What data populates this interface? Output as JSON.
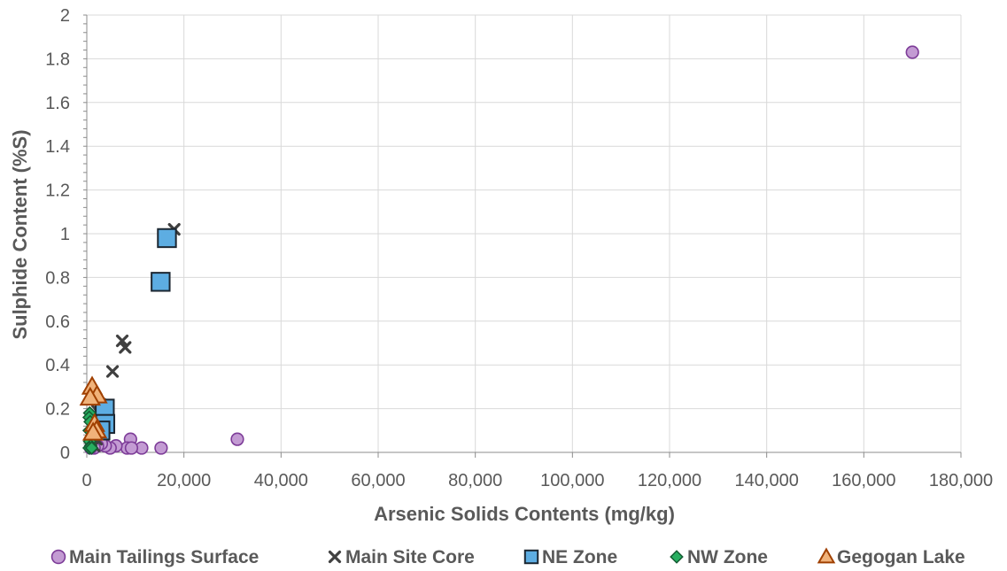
{
  "chart_data": {
    "type": "scatter",
    "title": "",
    "xlabel": "Arsenic Solids Contents (mg/kg)",
    "ylabel": "Sulphide Content (%S)",
    "xlim": [
      0,
      180000
    ],
    "ylim": [
      0,
      2
    ],
    "x_ticks": [
      0,
      20000,
      40000,
      60000,
      80000,
      100000,
      120000,
      140000,
      160000,
      180000
    ],
    "x_tick_labels": [
      "0",
      "20,000",
      "40,000",
      "60,000",
      "80,000",
      "100,000",
      "120,000",
      "140,000",
      "160,000",
      "180,000"
    ],
    "y_ticks": [
      0,
      0.2,
      0.4,
      0.6,
      0.8,
      1,
      1.2,
      1.4,
      1.6,
      1.8,
      2
    ],
    "y_tick_labels": [
      "0",
      "0.2",
      "0.4",
      "0.6",
      "0.8",
      "1",
      "1.2",
      "1.4",
      "1.6",
      "1.8",
      "2"
    ],
    "grid": true,
    "legend_position": "bottom",
    "series": [
      {
        "name": "Main Tailings Surface",
        "marker": "circle",
        "color": "#c39bd3",
        "edge": "#7d3c98",
        "points": [
          [
            170000,
            1.83
          ],
          [
            31000,
            0.06
          ],
          [
            9000,
            0.06
          ],
          [
            15300,
            0.02
          ],
          [
            11300,
            0.02
          ],
          [
            8300,
            0.02
          ],
          [
            9200,
            0.02
          ],
          [
            6000,
            0.03
          ],
          [
            4800,
            0.02
          ],
          [
            3800,
            0.03
          ],
          [
            3000,
            0.04
          ],
          [
            2200,
            0.03
          ],
          [
            1500,
            0.02
          ],
          [
            800,
            0.02
          ]
        ]
      },
      {
        "name": "Main Site Core",
        "marker": "x",
        "color": "#595959",
        "edge": "#404040",
        "points": [
          [
            18000,
            1.02
          ],
          [
            7300,
            0.51
          ],
          [
            7900,
            0.48
          ],
          [
            5300,
            0.37
          ],
          [
            2700,
            0.22
          ],
          [
            2200,
            0.19
          ],
          [
            2500,
            0.12
          ],
          [
            2000,
            0.06
          ],
          [
            1500,
            0.03
          ]
        ]
      },
      {
        "name": "NE Zone",
        "marker": "square",
        "color": "#5dade2",
        "edge": "#1b2631",
        "points": [
          [
            16500,
            0.98
          ],
          [
            15200,
            0.78
          ],
          [
            3700,
            0.2
          ],
          [
            3800,
            0.13
          ],
          [
            2800,
            0.1
          ]
        ]
      },
      {
        "name": "NW Zone",
        "marker": "diamond",
        "color": "#27ae60",
        "edge": "#145a32",
        "points": [
          [
            600,
            0.18
          ],
          [
            500,
            0.16
          ],
          [
            700,
            0.14
          ],
          [
            500,
            0.1
          ],
          [
            900,
            0.07
          ],
          [
            600,
            0.05
          ],
          [
            800,
            0.03
          ],
          [
            500,
            0.02
          ],
          [
            1000,
            0.02
          ]
        ]
      },
      {
        "name": "Gegogan Lake",
        "marker": "triangle",
        "color": "#f0b27a",
        "edge": "#a04000",
        "points": [
          [
            1100,
            0.3
          ],
          [
            2100,
            0.26
          ],
          [
            700,
            0.25
          ],
          [
            1600,
            0.13
          ],
          [
            2000,
            0.1
          ],
          [
            1300,
            0.09
          ]
        ]
      }
    ]
  }
}
